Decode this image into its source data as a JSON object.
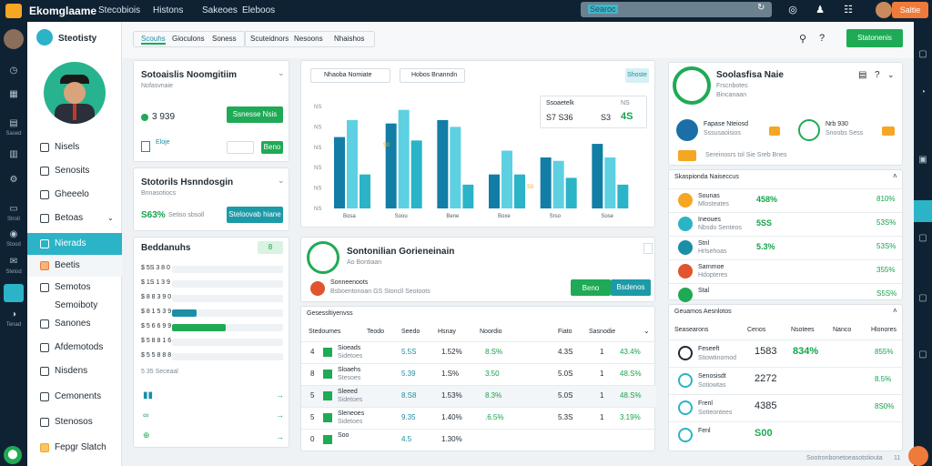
{
  "topbar": {
    "brand": "Ekomglaame",
    "nav": [
      "Stecobiois",
      "Histons",
      "Sakeoes",
      "Eleboos"
    ],
    "search_placeholder": "Searoc",
    "cta": "Saltie"
  },
  "rail": {
    "labels": [
      "",
      "",
      "Sased",
      "",
      "Stroit",
      "Stood",
      "Stetod",
      "",
      "Tenad",
      ""
    ]
  },
  "sidebar": {
    "title": "Steotisty",
    "items": [
      "Nisels",
      "Senosits",
      "Gheeelo",
      "Betoas",
      "Nierads",
      "Beetis",
      "Semotos",
      "Semoiboty",
      "Sanones",
      "Afdemotods",
      "Nisdens",
      "Cemonents",
      "Stenosos",
      "Fepgr Slatch"
    ],
    "active_index": 4
  },
  "header": {
    "tabs": [
      "Scouhs",
      "Gioculons",
      "Soness"
    ],
    "tabs2": [
      "Scuteidnors",
      "Nesoons",
      "Nhaishos"
    ],
    "action": "Statonenis"
  },
  "profile_card": {
    "title": "Sotoaislis Noomgitiim",
    "subtitle": "Nofasvnaie",
    "value": "3 939",
    "button": "Ssnesse Nsis",
    "badge": "Eloje",
    "mini_button": "Beno"
  },
  "stat_card": {
    "title": "Stotorils Hsnndosgin",
    "subtitle": "Bnnasotiocs",
    "value": "S63%",
    "note": "Setiso sbsoll",
    "button": "Steloovab hiane"
  },
  "resources_card": {
    "title": "Beddanuhs",
    "badge": "8",
    "rows": [
      "$ 5S 3 8 0",
      "$ 1S 1 3 9",
      "$ 8 8 3 9 0",
      "$ 8 1 5 3 9",
      "$ 5 6 6 9 9",
      "$ 5 8 8 1 6",
      "$ 5 5 8 8 8"
    ],
    "footer": "5 35 Seceaal",
    "bar_levels": [
      0.0,
      0.0,
      0.0,
      0.22,
      0.48,
      0.0,
      0.0
    ]
  },
  "chart_panel": {
    "filter1": "Nhaoba Nomiate",
    "filter2": "Hobos Bnanndn",
    "button": "Shoste",
    "legend_title": "Ssoaetelk",
    "legend_value": "S7 S36",
    "legend_value2": "S3",
    "legend_value3": "4S",
    "legend_num": "NS"
  },
  "chart_data": {
    "type": "bar",
    "categories": [
      "Bosa",
      "Soou",
      "Bene",
      "Boxe",
      "Srso",
      "Sose"
    ],
    "series": [
      {
        "values": [
          42,
          50,
          52,
          20,
          30,
          38
        ]
      },
      {
        "values": [
          52,
          58,
          48,
          34,
          28,
          30
        ]
      },
      {
        "values": [
          20,
          40,
          14,
          20,
          18,
          14
        ]
      }
    ],
    "ytick_labels": [
      "NS",
      "NS",
      "NS",
      "NS",
      "NS",
      "NS"
    ],
    "data_labels": [
      "S0",
      "S0"
    ]
  },
  "connect_card": {
    "title": "Sontonilian Gorieneinain",
    "subtitle": "Ao Bontiaan",
    "line1": "Sonneenoots",
    "line2": "Bsboentonoan GS Stoncll Seotoots",
    "button1": "Beno",
    "button2": "Bsdenos"
  },
  "table": {
    "title": "Gesessltiyenvss",
    "headers": [
      "Stedoumes",
      "Teodo",
      "Seedo",
      "Hsnay",
      "Noordio",
      "Fiato",
      "Sasnodie"
    ],
    "rows": [
      {
        "idx": "4",
        "name": "Sioeads",
        "sub": "Sidetoes",
        "a": "5.5S",
        "b": "1.52%",
        "c": "8.S%",
        "d": "4.3S",
        "e": "1",
        "f": "43.4%"
      },
      {
        "idx": "8",
        "name": "Sloaehs",
        "sub": "Stesoes",
        "a": "5.39",
        "b": "1.S%",
        "c": "3.50",
        "d": "5.0S",
        "e": "1",
        "f": "48.S%"
      },
      {
        "idx": "5",
        "name": "Sleeed",
        "sub": "Sidetoes",
        "a": "8.S8",
        "b": "1.53%",
        "c": "8.3%",
        "d": "5.0S",
        "e": "1",
        "f": "48.S%"
      },
      {
        "idx": "5",
        "name": "Sleneoes",
        "sub": "Sidetoes",
        "a": "9.35",
        "b": "1.40%",
        "c": ".6.5%",
        "d": "5.3S",
        "e": "1",
        "f": "3.19%"
      },
      {
        "idx": "0",
        "name": "Soo",
        "sub": "",
        "a": "4.5",
        "b": "1.30%",
        "c": "",
        "d": "",
        "e": "",
        "f": ""
      }
    ]
  },
  "right_top": {
    "title": "Soolasfisa Naie",
    "subtitle": "Frscnbotes",
    "sub2": "Bincanaan",
    "item1_title": "Fapase Nteiosd",
    "item1_sub": "Sssusaoisios",
    "item1_badge": "",
    "item2_title": "Nrb 930",
    "item2_sub": "Snoobs Sess",
    "badge_orange": "",
    "note": "Sereinosrs tol Sie Sreb Bnes"
  },
  "right_list": {
    "title": "Skaspionda Naiseccus",
    "items": [
      {
        "name": "Sounas",
        "sub": "Mlosteates",
        "v1": "458%",
        "v2": "810%"
      },
      {
        "name": "Ineoues",
        "sub": "Nbsdo Senteos",
        "v1": "5SS",
        "v2": "53S%"
      },
      {
        "name": "Stnl",
        "sub": "Hrlsehoas",
        "v1": "5.3%",
        "v2": "53S%"
      },
      {
        "name": "Sarnmoe",
        "sub": "Hdopteres",
        "v1": "",
        "v2": "355%"
      },
      {
        "name": "Stal",
        "sub": "",
        "v1": "",
        "v2": "S5S%"
      }
    ]
  },
  "right_table": {
    "title": "Geuamos Aesnlotos",
    "headers": [
      "Seasearons",
      "Cenos",
      "Nsotees",
      "Nanco",
      "Hlonores"
    ],
    "rows": [
      {
        "name": "Feseeft",
        "sub": "Stiowtinomod",
        "v1": "1583",
        "v2": "834%",
        "v3": "855%"
      },
      {
        "name": "Senosisdt",
        "sub": "Sotiowtas",
        "v1": "2272",
        "v2": "",
        "v3": "8.5%"
      },
      {
        "name": "Frenl",
        "sub": "Sotteontees",
        "v1": "4385",
        "v2": "",
        "v3": "8S0%"
      },
      {
        "name": "Fenl",
        "sub": "",
        "v1": "S00",
        "v2": "",
        "v3": ""
      }
    ],
    "footer": "Sootronbonetoeasotstiouta",
    "footer_num": "11"
  }
}
